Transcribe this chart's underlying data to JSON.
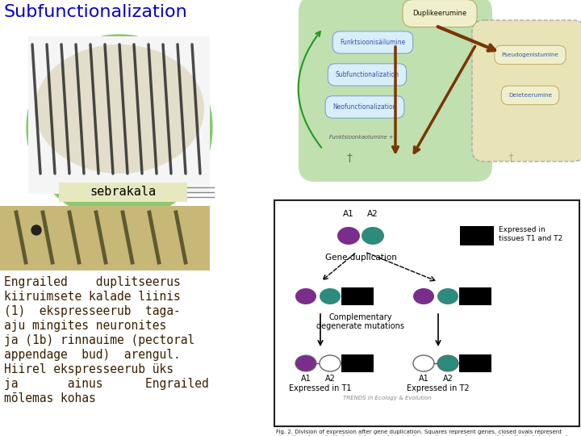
{
  "title": "Subfunctionalization",
  "title_color": "#0000cc",
  "title_fontsize": 16,
  "background_color": "#ffffff",
  "sebrakala_label": "sebrakala",
  "main_text_lines": [
    "Engrailed    duplitseerus",
    "kiiruimsete kalade liinis",
    "(1)  ekspresseerub  taga-",
    "aju mingites neuronites",
    "ja (1b) rinnauime (pectoral",
    "appendage  bud)  arengul.",
    "Hiirel ekspresseerub üks",
    "ja       ainus      Engrailed",
    "mõlemas kohas"
  ],
  "main_text_color": "#3a2000",
  "main_text_fontsize": 10.5,
  "oval_purple": "#7b2d8b",
  "oval_teal": "#2d8b7b",
  "oval_white": "#ffffff",
  "black_rect": "#000000",
  "green_circle_color": "#8cc870",
  "sebrakala_bg": "#e8e8c0",
  "fig_caption_fontsize": 5.0,
  "fig_caption_color": "#222222"
}
